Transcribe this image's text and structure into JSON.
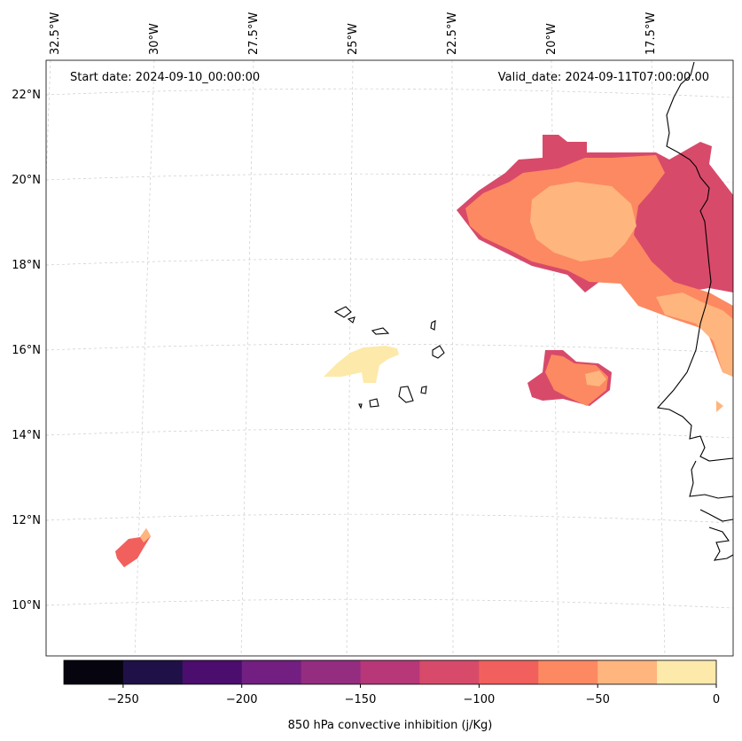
{
  "header": {
    "start_date": "Start date: 2024-09-10_00:00:00",
    "valid_date": "Valid_date: 2024-09-11T07:00:00.00"
  },
  "map": {
    "lon_labels": [
      "32.5°W",
      "30°W",
      "27.5°W",
      "25°W",
      "22.5°W",
      "20°W",
      "17.5°W"
    ],
    "lat_labels": [
      "22°N",
      "20°N",
      "18°N",
      "16°N",
      "14°N",
      "12°N",
      "10°N"
    ],
    "gridlines": "dashed light gray",
    "coastline_color": "#000000"
  },
  "colorbar": {
    "label": "850 hPa convective inhibition (j/Kg)",
    "ticks": [
      "−250",
      "−200",
      "−150",
      "−100",
      "−50",
      "0"
    ],
    "range": [
      -275,
      0
    ],
    "colors": [
      "#05040f",
      "#1f1147",
      "#4b0d6e",
      "#721f81",
      "#942c80",
      "#b73779",
      "#d84a6a",
      "#f1605d",
      "#fc8961",
      "#feb57e",
      "#fde9a9"
    ]
  }
}
